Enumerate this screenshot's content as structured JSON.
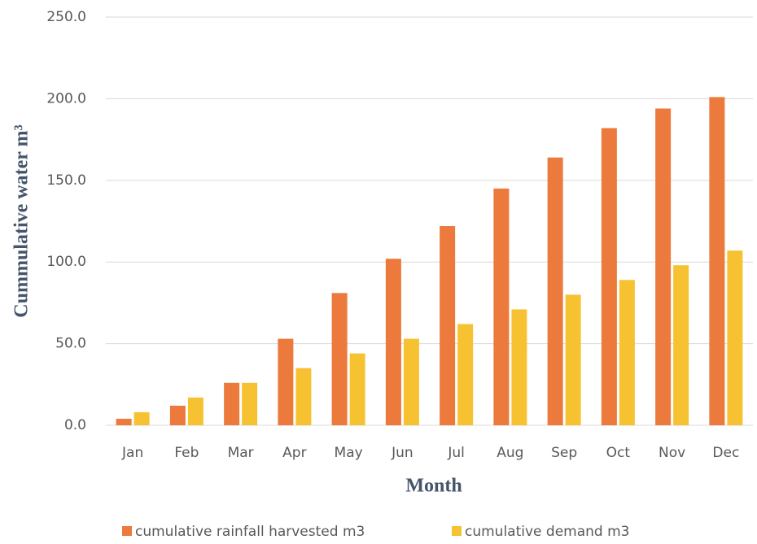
{
  "chart_data": {
    "type": "bar",
    "xlabel": "Month",
    "ylabel": "Cummulative water m³",
    "categories": [
      "Jan",
      "Feb",
      "Mar",
      "Apr",
      "May",
      "Jun",
      "Jul",
      "Aug",
      "Sep",
      "Oct",
      "Nov",
      "Dec"
    ],
    "series": [
      {
        "name": "cumulative rainfall harvested m3",
        "color": "#ec7a3c",
        "values": [
          4,
          12,
          26,
          53,
          81,
          102,
          122,
          145,
          164,
          182,
          194,
          201
        ]
      },
      {
        "name": "cumulative demand m3",
        "color": "#f7c232",
        "values": [
          8,
          17,
          26,
          35,
          44,
          53,
          62,
          71,
          80,
          89,
          98,
          107
        ]
      }
    ],
    "ylim": [
      0,
      250
    ],
    "yticks": [
      {
        "value": 0,
        "label": "0.0"
      },
      {
        "value": 50,
        "label": "50.0"
      },
      {
        "value": 100,
        "label": "100.0"
      },
      {
        "value": 150,
        "label": "150.0"
      },
      {
        "value": 200,
        "label": "200.0"
      },
      {
        "value": 250,
        "label": "250.0"
      }
    ],
    "grid": true,
    "legend": "bottom"
  }
}
